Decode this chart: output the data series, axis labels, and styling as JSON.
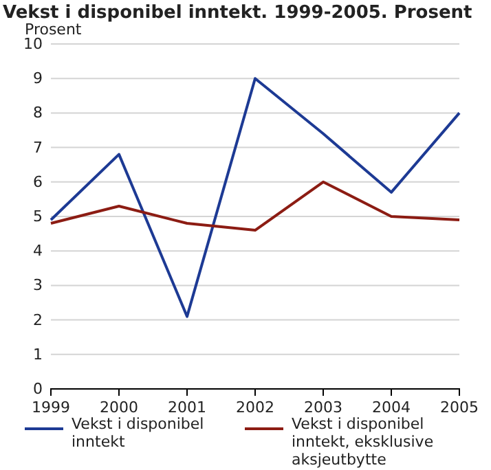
{
  "chart_data": {
    "type": "line",
    "title": "Vekst i disponibel inntekt. 1999-2005. Prosent",
    "ylabel": "Prosent",
    "categories": [
      "1999",
      "2000",
      "2001",
      "2002",
      "2003",
      "2004",
      "2005"
    ],
    "series": [
      {
        "name": "Vekst i disponibel inntekt",
        "color": "#1d3a94",
        "values": [
          4.9,
          6.8,
          2.1,
          9.0,
          7.4,
          5.7,
          8.0
        ]
      },
      {
        "name": "Vekst i disponibel inntekt, eksklusive aksjeutbytte",
        "color": "#8c1c13",
        "values": [
          4.8,
          5.3,
          4.8,
          4.6,
          6.0,
          5.0,
          4.9
        ]
      }
    ],
    "ylim": [
      0,
      10
    ],
    "yticks": [
      0,
      1,
      2,
      3,
      4,
      5,
      6,
      7,
      8,
      9,
      10
    ],
    "grid": "y",
    "legend": "bottom",
    "marker": "none",
    "line_style": "solid"
  }
}
